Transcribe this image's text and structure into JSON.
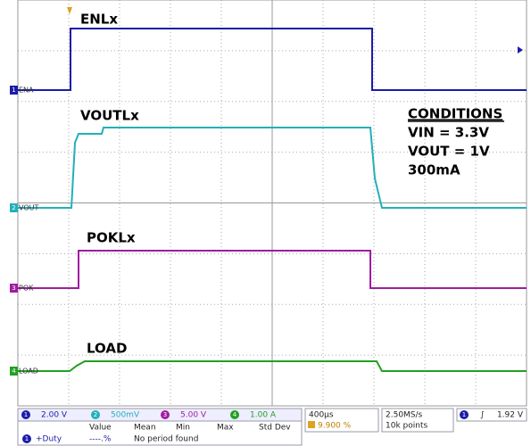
{
  "traces": [
    {
      "marker": "1",
      "label": "ENA",
      "name": "ENLx",
      "color": "#1c1ca8"
    },
    {
      "marker": "2",
      "label": "VOUT",
      "name": "VOUTLx",
      "color": "#22b0b8"
    },
    {
      "marker": "3",
      "label": "POK",
      "name": "POKLx",
      "color": "#a01ca0"
    },
    {
      "marker": "4",
      "label": "LOAD",
      "name": "LOAD",
      "color": "#22a022"
    }
  ],
  "conditions": {
    "heading": "CONDITIONS",
    "lines": [
      "VIN = 3.3V",
      "VOUT = 1V",
      "300mA"
    ]
  },
  "status": {
    "channels": [
      {
        "number": "1",
        "scale": "2.00 V"
      },
      {
        "number": "2",
        "scale": "500mV"
      },
      {
        "number": "3",
        "scale": "5.00 V"
      },
      {
        "number": "4",
        "scale": "1.00 A"
      }
    ],
    "timebase": "400µs",
    "trigger_position": "9.900 %",
    "sample_rate": "2.50MS/s",
    "record_length": "10k points",
    "trigger_channel": "1",
    "trigger_level": "1.92 V",
    "measurement": {
      "channel": "1",
      "name": "+Duty",
      "columns": [
        "Value",
        "Mean",
        "Min",
        "Max",
        "Std Dev"
      ],
      "value": "----.%",
      "note": "No period found"
    }
  }
}
